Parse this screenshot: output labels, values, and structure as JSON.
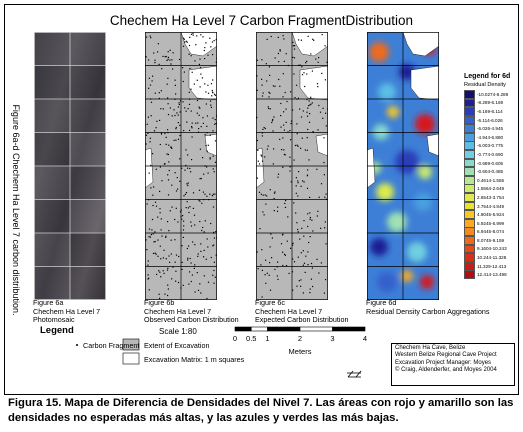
{
  "title": "Chechem Ha Level 7 Carbon FragmentDistribution",
  "side_label": "Figure 6a-d Chechem Ha Level 7 carbon distribution.",
  "panels": [
    {
      "caption": [
        "Figure 6a",
        "Chechem Ha Level 7",
        "Photomosaic"
      ]
    },
    {
      "caption": [
        "Figure 6b",
        "Chechem Ha Level 7",
        "Observed Carbon Distribution"
      ]
    },
    {
      "caption": [
        "Figure 6c",
        "Chechem Ha Level 7",
        "Expected Carbon Distribution"
      ]
    },
    {
      "caption": [
        "Figure 6d",
        "Residual Density Carbon Aggregations"
      ]
    }
  ],
  "density_legend": {
    "title": "Legend for 6d",
    "subtitle": "Residual Density",
    "classes": [
      {
        "label": "-10.0274-8.289",
        "color": "#11106e"
      },
      {
        "label": "-8.289-6.169",
        "color": "#1f1e94"
      },
      {
        "label": "-6.169-6.114",
        "color": "#2b3db8"
      },
      {
        "label": "-6.114-6.026",
        "color": "#3460cc"
      },
      {
        "label": "-6.026-4.945",
        "color": "#3d7fd6"
      },
      {
        "label": "-4.944-6.880",
        "color": "#4aa0df"
      },
      {
        "label": "-6.003-0.775",
        "color": "#5cbee6"
      },
      {
        "label": "-0.774-0.690",
        "color": "#70cfe0"
      },
      {
        "label": "-0.689-0.605",
        "color": "#86dbcc"
      },
      {
        "label": "-0.604-0.485",
        "color": "#9fe2b2"
      },
      {
        "label": "0.4614-1.555",
        "color": "#b6e890"
      },
      {
        "label": "1.5564-2.649",
        "color": "#cbec6c"
      },
      {
        "label": "2.6543-3.754",
        "color": "#ddec4c"
      },
      {
        "label": "3.7544-4.849",
        "color": "#ece032"
      },
      {
        "label": "4.8045-5.924",
        "color": "#f6c826"
      },
      {
        "label": "5.9245-6.999",
        "color": "#f8ab20"
      },
      {
        "label": "6.9445-8.074",
        "color": "#f48a1c"
      },
      {
        "label": "8.0745-9.159",
        "color": "#ee6a1a"
      },
      {
        "label": "9.1604-10.243",
        "color": "#e44a18"
      },
      {
        "label": "10.244-11.328",
        "color": "#d83018"
      },
      {
        "label": "11.329-12.413",
        "color": "#c81c16"
      },
      {
        "label": "12.414-13.498",
        "color": "#b50e12"
      }
    ]
  },
  "scale": {
    "text": "Scale 1:80",
    "tick_labels": [
      "0",
      "0.5",
      "1",
      "2",
      "3",
      "4"
    ],
    "tick_values": [
      0,
      0.5,
      1,
      2,
      3,
      4
    ],
    "unit": "Meters"
  },
  "legend": {
    "title": "Legend",
    "items": [
      {
        "label": "Carbon Fragment",
        "symbol": "dot"
      },
      {
        "label": "Extent of Excavation",
        "symbol": "gray-fill"
      },
      {
        "label": "Excavation Matrix: 1 m squares",
        "symbol": "white-box"
      }
    ]
  },
  "credit": [
    "Chechem Ha Cave, Belize",
    "Western Belize Regional Cave Project",
    "Excavation Project Manager: Moyes",
    "© Craig, Aldenderfer, and Moyes 2004"
  ],
  "caption": "Figura 15.  Mapa de Diferencia de Densidades del Nivel 7. Las áreas con rojo y amarillo son las densidades no esperadas más altas, y las azules y verdes las más bajas.",
  "colors": {
    "excavation_gray": "#b8b8b8",
    "grid_line": "#000000",
    "hotspot_red": "#d8141b"
  }
}
